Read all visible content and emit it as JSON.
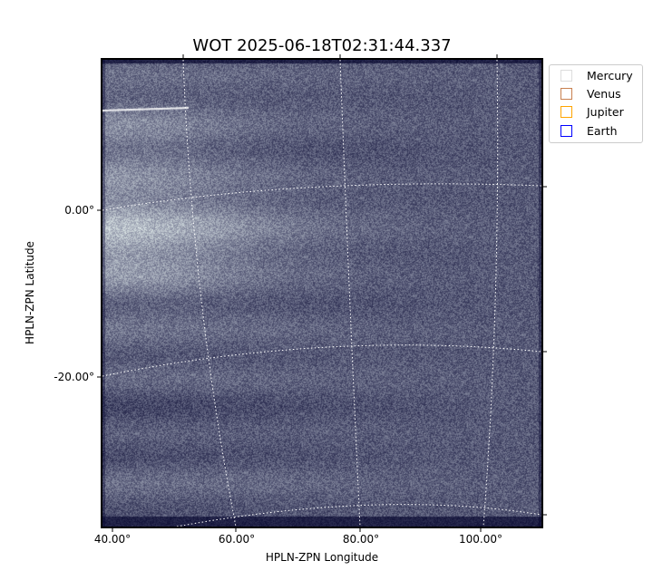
{
  "chart_data": {
    "type": "heatmap",
    "title": "WOT 2025-06-18T02:31:44.337",
    "xlabel": "HPLN-ZPN Longitude",
    "ylabel": "HPLN-ZPN Latitude",
    "x_ticks": [
      "40.00°",
      "60.00°",
      "80.00°",
      "100.00°"
    ],
    "y_ticks": [
      "0.00°",
      "-20.00°"
    ],
    "grid": true,
    "colormap": "bone",
    "legend_placement": "outside-upper-right",
    "legend": [
      {
        "name": "Mercury",
        "color": "#dddddd"
      },
      {
        "name": "Venus",
        "color": "#c8804f"
      },
      {
        "name": "Jupiter",
        "color": "#ffa500"
      },
      {
        "name": "Earth",
        "color": "#0000ff"
      }
    ]
  }
}
